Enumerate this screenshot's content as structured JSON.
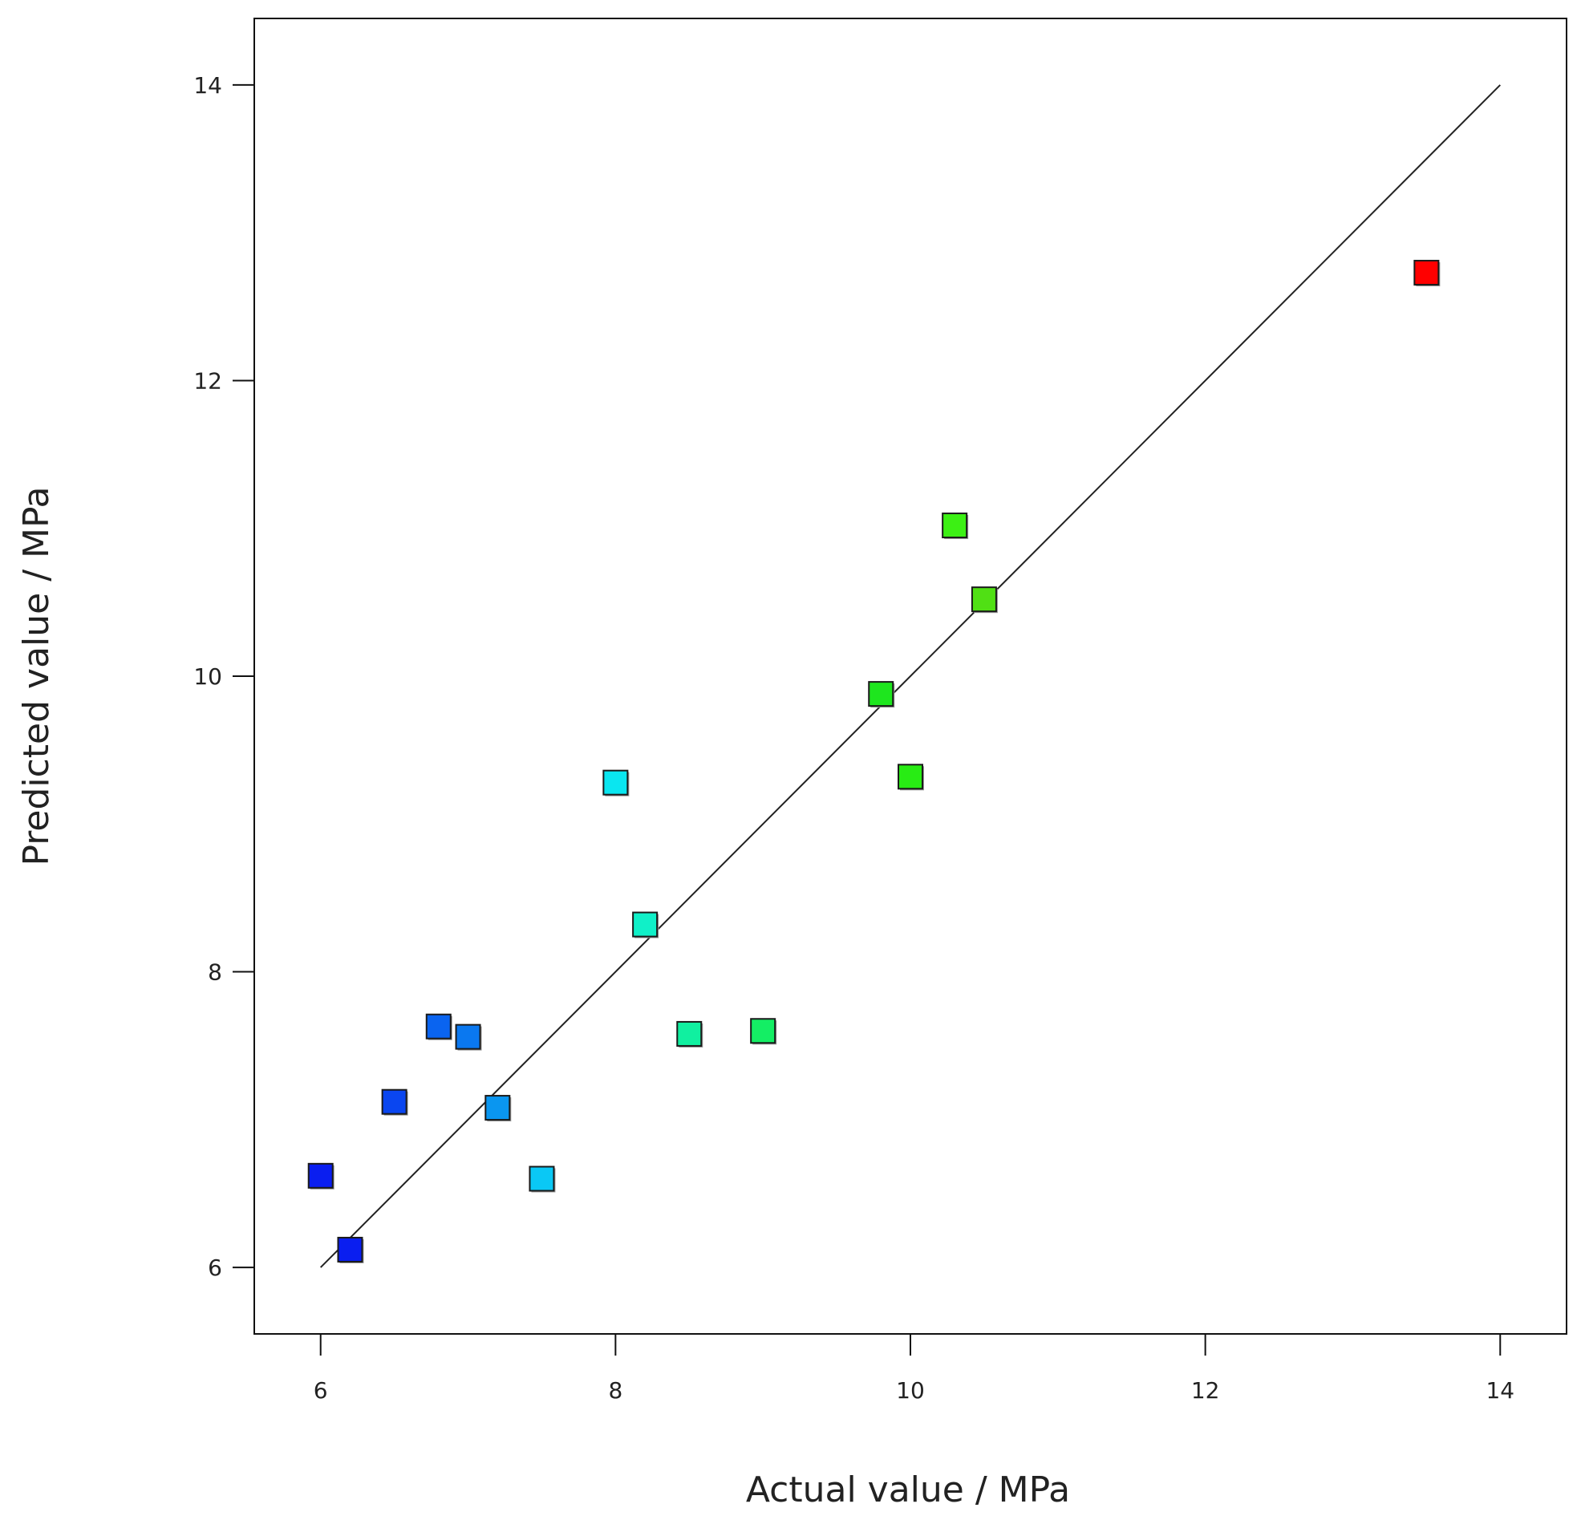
{
  "chart_data": {
    "type": "scatter",
    "xlabel": "Actual value / MPa",
    "ylabel": "Predicted value / MPa",
    "xlim": [
      5.55,
      14.45
    ],
    "ylim": [
      5.55,
      14.45
    ],
    "xticks": [
      6,
      8,
      10,
      12,
      14
    ],
    "yticks": [
      6,
      8,
      10,
      12,
      14
    ],
    "xtick_labels": [
      "6",
      "8",
      "10",
      "12",
      "14"
    ],
    "ytick_labels": [
      "6",
      "8",
      "10",
      "12",
      "14"
    ],
    "reference_line": {
      "x": [
        6,
        14
      ],
      "y": [
        6,
        14
      ],
      "color": "#222222"
    },
    "points": [
      {
        "x": 6.0,
        "y": 6.62,
        "color": "#0a1ef0"
      },
      {
        "x": 6.2,
        "y": 6.12,
        "color": "#0a1ef0"
      },
      {
        "x": 6.5,
        "y": 7.12,
        "color": "#0a46f0"
      },
      {
        "x": 6.8,
        "y": 7.63,
        "color": "#0a64f0"
      },
      {
        "x": 7.0,
        "y": 7.56,
        "color": "#0a78f0"
      },
      {
        "x": 7.2,
        "y": 7.08,
        "color": "#0a96f0"
      },
      {
        "x": 7.5,
        "y": 6.6,
        "color": "#0ac8f5"
      },
      {
        "x": 8.0,
        "y": 9.28,
        "color": "#0ae6f0"
      },
      {
        "x": 8.2,
        "y": 8.32,
        "color": "#10f0c8"
      },
      {
        "x": 8.5,
        "y": 7.58,
        "color": "#10f0a0"
      },
      {
        "x": 9.0,
        "y": 7.6,
        "color": "#14ee64"
      },
      {
        "x": 9.8,
        "y": 9.88,
        "color": "#1ee61e"
      },
      {
        "x": 10.0,
        "y": 9.32,
        "color": "#28ec14"
      },
      {
        "x": 10.3,
        "y": 11.02,
        "color": "#3cf014"
      },
      {
        "x": 10.5,
        "y": 10.52,
        "color": "#50e014"
      },
      {
        "x": 13.5,
        "y": 12.73,
        "color": "#ff0000"
      }
    ]
  }
}
